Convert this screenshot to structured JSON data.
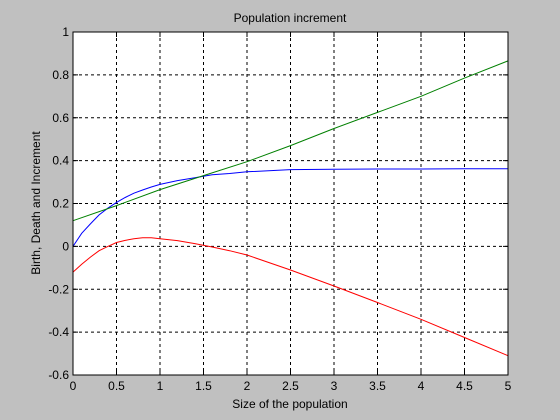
{
  "chart_data": {
    "type": "line",
    "title": "Population increment",
    "xlabel": "Size of the population",
    "ylabel": "Birth, Death and Increment",
    "xlim": [
      0,
      5
    ],
    "ylim": [
      -0.6,
      1
    ],
    "grid": true,
    "xticks": [
      "0",
      "0.5",
      "1",
      "1.5",
      "2",
      "2.5",
      "3",
      "3.5",
      "4",
      "4.5",
      "5"
    ],
    "yticks": [
      "-0.6",
      "-0.4",
      "-0.2",
      "0",
      "0.2",
      "0.4",
      "0.6",
      "0.8",
      "1"
    ],
    "series": [
      {
        "color": "#0000ff",
        "x": [
          0,
          0.1,
          0.2,
          0.3,
          0.4,
          0.5,
          0.6,
          0.7,
          0.8,
          0.9,
          1.0,
          1.2,
          1.4,
          1.6,
          1.8,
          2.0,
          2.5,
          3.0,
          3.5,
          4.0,
          4.5,
          5.0
        ],
        "y": [
          0.0,
          0.061,
          0.105,
          0.147,
          0.178,
          0.205,
          0.228,
          0.248,
          0.263,
          0.277,
          0.289,
          0.307,
          0.32,
          0.334,
          0.34,
          0.348,
          0.358,
          0.36,
          0.361,
          0.361,
          0.362,
          0.362
        ]
      },
      {
        "color": "#008000",
        "x": [
          0,
          0.5,
          1.0,
          1.5,
          2.0,
          2.5,
          3.0,
          3.5,
          4.0,
          4.5,
          5.0
        ],
        "y": [
          0.12,
          0.19,
          0.265,
          0.33,
          0.395,
          0.47,
          0.55,
          0.625,
          0.7,
          0.785,
          0.865
        ]
      },
      {
        "color": "#ff0000",
        "x": [
          0,
          0.1,
          0.2,
          0.3,
          0.4,
          0.5,
          0.6,
          0.7,
          0.8,
          0.9,
          1.0,
          1.2,
          1.4,
          1.6,
          1.8,
          2.0,
          2.5,
          3.0,
          3.5,
          4.0,
          4.5,
          5.0
        ],
        "y": [
          -0.12,
          -0.083,
          -0.05,
          -0.02,
          0.0,
          0.018,
          0.028,
          0.036,
          0.04,
          0.04,
          0.036,
          0.027,
          0.013,
          -0.003,
          -0.02,
          -0.04,
          -0.11,
          -0.185,
          -0.262,
          -0.34,
          -0.425,
          -0.51
        ]
      }
    ]
  }
}
